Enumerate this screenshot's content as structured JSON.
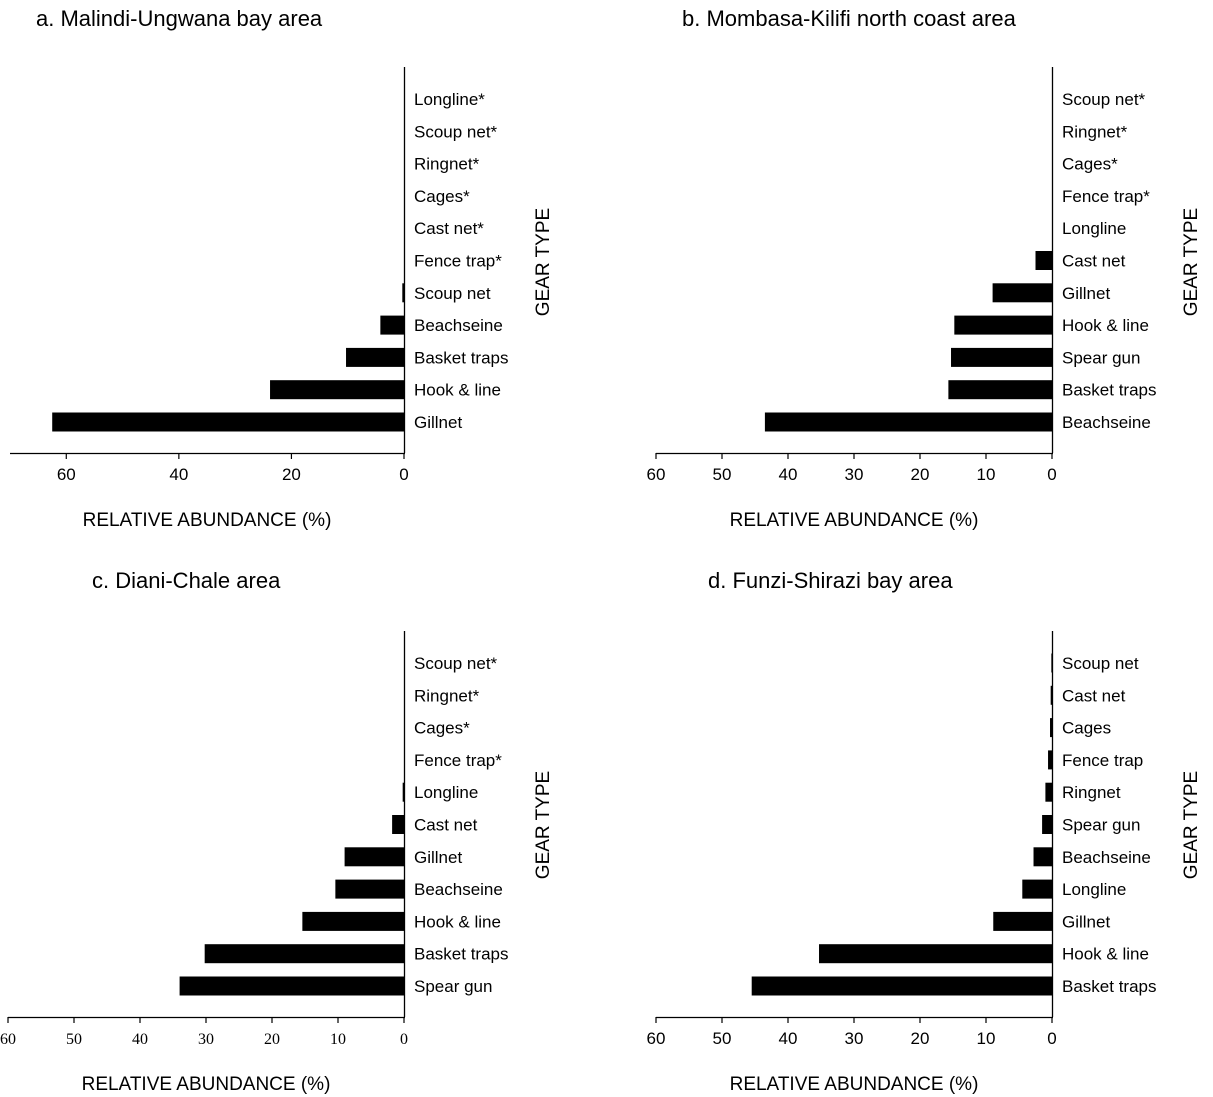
{
  "figure": {
    "colors": {
      "bar": "#000000",
      "axis": "#000000",
      "background": "#ffffff"
    }
  },
  "chart_data": [
    {
      "type": "bar",
      "orientation": "horizontal",
      "title": "a. Malindi-Ungwana bay area",
      "xlabel": "RELATIVE ABUNDANCE (%)",
      "ylabel": "GEAR TYPE",
      "categories": [
        "Longline*",
        "Scoup net*",
        "Ringnet*",
        "Cages*",
        "Cast net*",
        "Fence trap*",
        "Scoup net",
        "Beachseine",
        "Basket traps",
        "Hook & line",
        "Gillnet"
      ],
      "values": [
        0,
        0,
        0,
        0,
        0,
        0,
        0.3,
        4.2,
        10.3,
        23.8,
        62.5
      ],
      "xlim": [
        70,
        0
      ],
      "xticks": [
        60,
        40,
        20,
        0
      ],
      "xaxis_reversed": true,
      "category_labels_side": "right",
      "tick_font": "sans"
    },
    {
      "type": "bar",
      "orientation": "horizontal",
      "title": "b. Mombasa-Kilifi north coast area",
      "xlabel": "RELATIVE ABUNDANCE (%)",
      "ylabel": "GEAR TYPE",
      "categories": [
        "Scoup net*",
        "Ringnet*",
        "Cages*",
        "Fence trap*",
        "Longline",
        "Cast net",
        "Gillnet",
        "Hook & line",
        "Spear gun",
        "Basket traps",
        "Beachseine"
      ],
      "values": [
        0,
        0,
        0,
        0,
        0,
        2.5,
        9.0,
        14.8,
        15.3,
        15.7,
        43.5
      ],
      "xlim": [
        60,
        0
      ],
      "xticks": [
        60,
        50,
        40,
        30,
        20,
        10,
        0
      ],
      "xaxis_reversed": true,
      "category_labels_side": "right",
      "tick_font": "sans"
    },
    {
      "type": "bar",
      "orientation": "horizontal",
      "title": "c. Diani-Chale area",
      "xlabel": "RELATIVE ABUNDANCE (%)",
      "ylabel": "GEAR TYPE",
      "categories": [
        "Scoup net*",
        "Ringnet*",
        "Cages*",
        "Fence trap*",
        "Longline",
        "Cast net",
        "Gillnet",
        "Beachseine",
        "Hook & line",
        "Basket traps",
        "Spear gun"
      ],
      "values": [
        0,
        0,
        0,
        0,
        0.2,
        1.8,
        9.0,
        10.4,
        15.4,
        30.2,
        34.0
      ],
      "xlim": [
        60,
        0
      ],
      "xticks": [
        60,
        50,
        40,
        30,
        20,
        10,
        0
      ],
      "xaxis_reversed": true,
      "category_labels_side": "right",
      "tick_font": "serif"
    },
    {
      "type": "bar",
      "orientation": "horizontal",
      "title": "d. Funzi-Shirazi bay area",
      "xlabel": "RELATIVE ABUNDANCE (%)",
      "ylabel": "GEAR TYPE",
      "categories": [
        "Scoup net",
        "Cast net",
        "Cages",
        "Fence trap",
        "Ringnet",
        "Spear gun",
        "Beachseine",
        "Longline",
        "Gillnet",
        "Hook & line",
        "Basket traps"
      ],
      "values": [
        0.1,
        0.2,
        0.3,
        0.6,
        1.0,
        1.5,
        2.8,
        4.5,
        8.9,
        35.3,
        45.5
      ],
      "xlim": [
        60,
        0
      ],
      "xticks": [
        60,
        50,
        40,
        30,
        20,
        10,
        0
      ],
      "xaxis_reversed": true,
      "category_labels_side": "right",
      "tick_font": "sans"
    }
  ]
}
